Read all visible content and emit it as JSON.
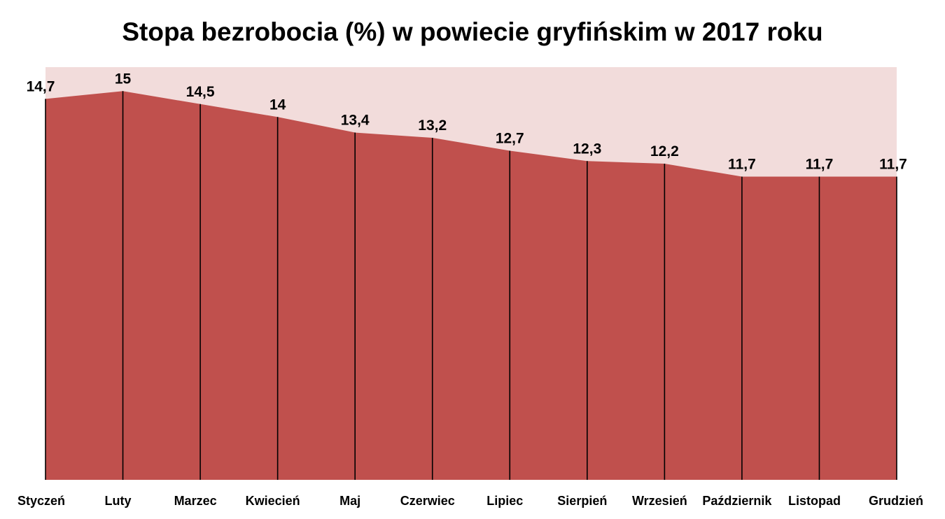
{
  "chart_data": {
    "type": "area",
    "title": "Stopa bezrobocia (%) w powiecie gryfińskim w 2017 roku",
    "xlabel": "",
    "ylabel": "",
    "categories": [
      "Styczeń",
      "Luty",
      "Marzec",
      "Kwiecień",
      "Maj",
      "Czerwiec",
      "Lipiec",
      "Sierpień",
      "Wrzesień",
      "Październik",
      "Listopad",
      "Grudzień"
    ],
    "values": [
      14.7,
      15,
      14.5,
      14,
      13.4,
      13.2,
      12.7,
      12.3,
      12.2,
      11.7,
      11.7,
      11.7
    ],
    "data_labels": [
      "14,7",
      "15",
      "14,5",
      "14",
      "13,4",
      "13,2",
      "12,7",
      "12,3",
      "12,2",
      "11,7",
      "11,7",
      "11,7"
    ],
    "ylim": [
      0,
      16
    ],
    "grid": false,
    "legend": "none",
    "colors": {
      "area_fill": "#C0504D",
      "plot_background": "#F2DCDB",
      "drop_lines": "#000000",
      "text": "#000000"
    }
  }
}
